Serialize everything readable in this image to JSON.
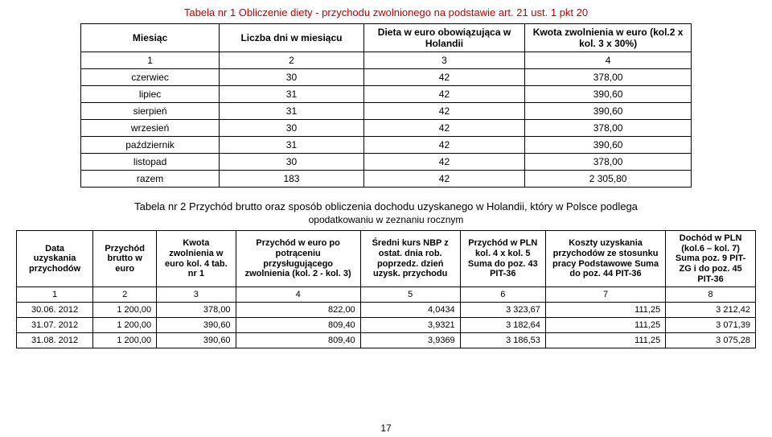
{
  "title1": "Tabela nr 1 Obliczenie diety - przychodu zwolnionego na podstawie art. 21 ust. 1 pkt 20",
  "table1": {
    "headers": [
      "Miesiąc",
      "Liczba dni w miesiącu",
      "Dieta w euro obowiązująca w Holandii",
      "Kwota zwolnienia w euro (kol.2 x kol. 3 x 30%)"
    ],
    "numrow": [
      "1",
      "2",
      "3",
      "4"
    ],
    "rows": [
      [
        "czerwiec",
        "30",
        "42",
        "378,00"
      ],
      [
        "lipiec",
        "31",
        "42",
        "390,60"
      ],
      [
        "sierpień",
        "31",
        "42",
        "390,60"
      ],
      [
        "wrzesień",
        "30",
        "42",
        "378,00"
      ],
      [
        "październik",
        "31",
        "42",
        "390,60"
      ],
      [
        "listopad",
        "30",
        "42",
        "378,00"
      ]
    ],
    "total": [
      "razem",
      "183",
      "42",
      "2 305,80"
    ]
  },
  "title2": "Tabela nr 2 Przychód brutto oraz sposób obliczenia dochodu uzyskanego w Holandii, który w Polsce podlega",
  "subtitle2": "opodatkowaniu w zeznaniu rocznym",
  "table2": {
    "headers": [
      "Data uzyskania przychodów",
      "Przychód brutto w euro",
      "Kwota zwolnienia w euro kol. 4 tab. nr 1",
      "Przychód w euro po potrąceniu przysługującego zwolnienia (kol. 2 - kol. 3)",
      "Średni kurs NBP z ostat. dnia rob. poprzedz. dzień uzysk. przychodu",
      "Przychód w PLN kol. 4 x kol. 5 Suma do poz. 43 PIT-36",
      "Koszty uzyskania przychodów ze stosunku pracy Podstawowe Suma do poz. 44 PIT-36",
      "Dochód w PLN (kol.6 – kol. 7) Suma poz. 9 PIT-ZG i do poz. 45 PIT-36"
    ],
    "numrow": [
      "1",
      "2",
      "3",
      "4",
      "5",
      "6",
      "7",
      "8"
    ],
    "rows": [
      [
        "30.06. 2012",
        "1 200,00",
        "378,00",
        "822,00",
        "4,0434",
        "3 323,67",
        "111,25",
        "3 212,42"
      ],
      [
        "31.07. 2012",
        "1 200,00",
        "390,60",
        "809,40",
        "3,9321",
        "3 182,64",
        "111,25",
        "3 071,39"
      ],
      [
        "31.08. 2012",
        "1 200,00",
        "390,60",
        "809,40",
        "3,9369",
        "3 186,53",
        "111,25",
        "3 075,28"
      ]
    ]
  },
  "pagenum": "17"
}
